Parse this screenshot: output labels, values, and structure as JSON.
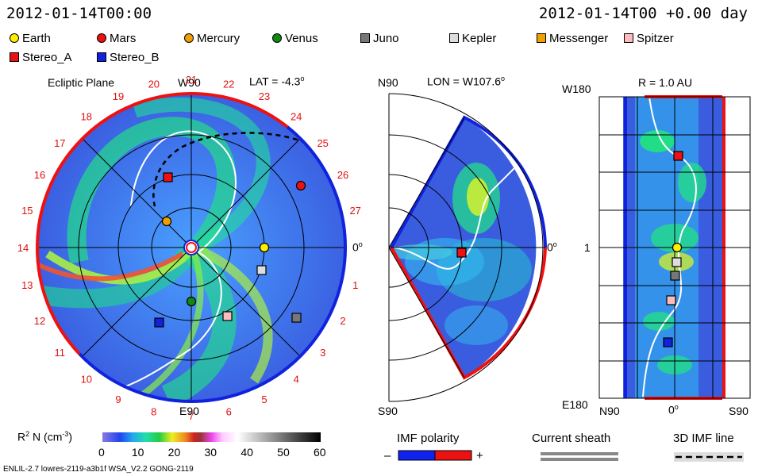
{
  "header": {
    "left_time": "2012-01-14T00:00",
    "right_time": "2012-01-14T00 +0.00 day"
  },
  "legend": [
    {
      "name": "Earth",
      "shape": "circle",
      "color": "#ffee00"
    },
    {
      "name": "Mars",
      "shape": "circle",
      "color": "#ee1111"
    },
    {
      "name": "Mercury",
      "shape": "circle",
      "color": "#f0a000"
    },
    {
      "name": "Venus",
      "shape": "circle",
      "color": "#118811"
    },
    {
      "name": "Juno",
      "shape": "square",
      "color": "#777777"
    },
    {
      "name": "Kepler",
      "shape": "square",
      "color": "#dddddd"
    },
    {
      "name": "Messenger",
      "shape": "square",
      "color": "#f0a000"
    },
    {
      "name": "Spitzer",
      "shape": "square",
      "color": "#ffbbbb"
    },
    {
      "name": "Stereo_A",
      "shape": "square",
      "color": "#ee1111"
    },
    {
      "name": "Stereo_B",
      "shape": "square",
      "color": "#1122dd"
    }
  ],
  "panels": {
    "ecliptic": {
      "title": "Ecliptic Plane",
      "top": "W90",
      "bottom": "E90",
      "right": "0",
      "lat": "LAT = -4.3",
      "rotations": [
        "20",
        "21",
        "22",
        "23",
        "24",
        "25",
        "26",
        "27",
        "0",
        "1",
        "2",
        "3",
        "4",
        "5",
        "6",
        "7",
        "8",
        "9",
        "10",
        "11",
        "12",
        "13",
        "14",
        "15",
        "16",
        "17",
        "18",
        "19"
      ]
    },
    "meridional": {
      "top": "N90",
      "bottom": "S90",
      "right": "0",
      "lon": "LON = W107.6"
    },
    "radial": {
      "title": "R = 1.0 AU",
      "top_left": "W180",
      "bottom_left": "E180",
      "mid_left": "1",
      "bottom_labels": [
        "N90",
        "0",
        "S90"
      ]
    }
  },
  "colorbar": {
    "label": "R",
    "label_rest": "N (cm",
    "ticks": [
      "0",
      "10",
      "20",
      "30",
      "40",
      "50",
      "60"
    ]
  },
  "imf": {
    "title": "IMF polarity",
    "minus": "–",
    "plus": "+"
  },
  "current_sheath": {
    "title": "Current sheath"
  },
  "imf_line": {
    "title": "3D IMF line"
  },
  "footer": {
    "model": "ENLIL-2.7 lowres-2119-a3b1f WSA_V2.2 GONG-2119"
  }
}
